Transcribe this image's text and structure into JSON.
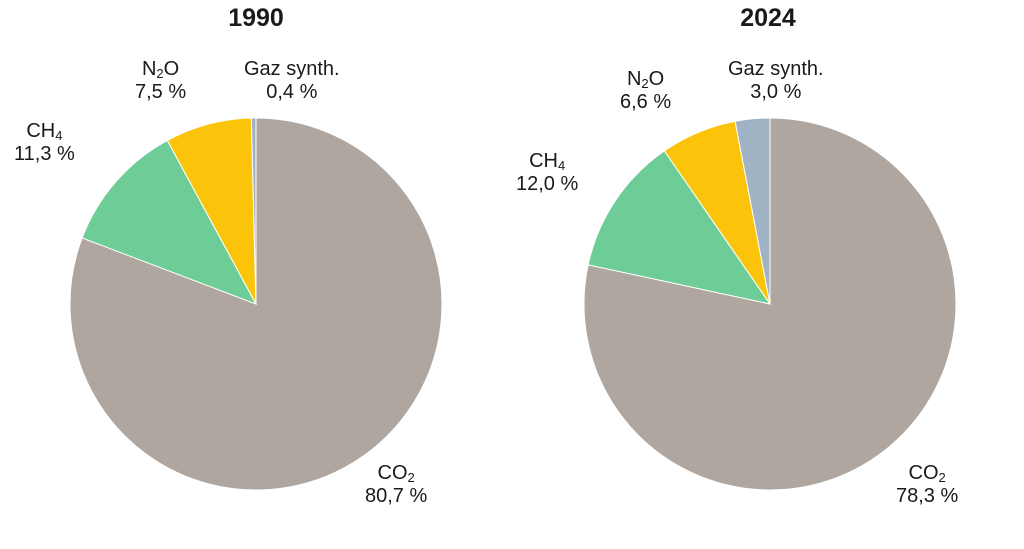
{
  "colors": {
    "CO2": "#aea69f",
    "CH4": "#6ecd96",
    "N2O": "#fbc40a",
    "Gaz synth.": "#9fb3c4"
  },
  "chart_data": [
    {
      "type": "pie",
      "title": "1990",
      "start_angle_deg": 0,
      "direction": "clockwise",
      "slices": [
        {
          "key": "CO2",
          "label_main": "CO",
          "label_sub": "2",
          "value": 80.7,
          "value_text": "80,7 %"
        },
        {
          "key": "CH4",
          "label_main": "CH",
          "label_sub": "4",
          "value": 11.3,
          "value_text": "11,3 %"
        },
        {
          "key": "N2O",
          "label_main": "N",
          "label_sub": "2",
          "label_tail": "O",
          "value": 7.5,
          "value_text": "7,5 %"
        },
        {
          "key": "Gaz synth.",
          "label_main": "Gaz synth.",
          "value": 0.4,
          "value_text": "0,4 %"
        }
      ]
    },
    {
      "type": "pie",
      "title": "2024",
      "start_angle_deg": 0,
      "direction": "clockwise",
      "slices": [
        {
          "key": "CO2",
          "label_main": "CO",
          "label_sub": "2",
          "value": 78.3,
          "value_text": "78,3 %"
        },
        {
          "key": "CH4",
          "label_main": "CH",
          "label_sub": "4",
          "value": 12.0,
          "value_text": "12,0 %"
        },
        {
          "key": "N2O",
          "label_main": "N",
          "label_sub": "2",
          "label_tail": "O",
          "value": 6.6,
          "value_text": "6,6 %"
        },
        {
          "key": "Gaz synth.",
          "label_main": "Gaz synth.",
          "value": 3.0,
          "value_text": "3,0 %"
        }
      ]
    }
  ]
}
